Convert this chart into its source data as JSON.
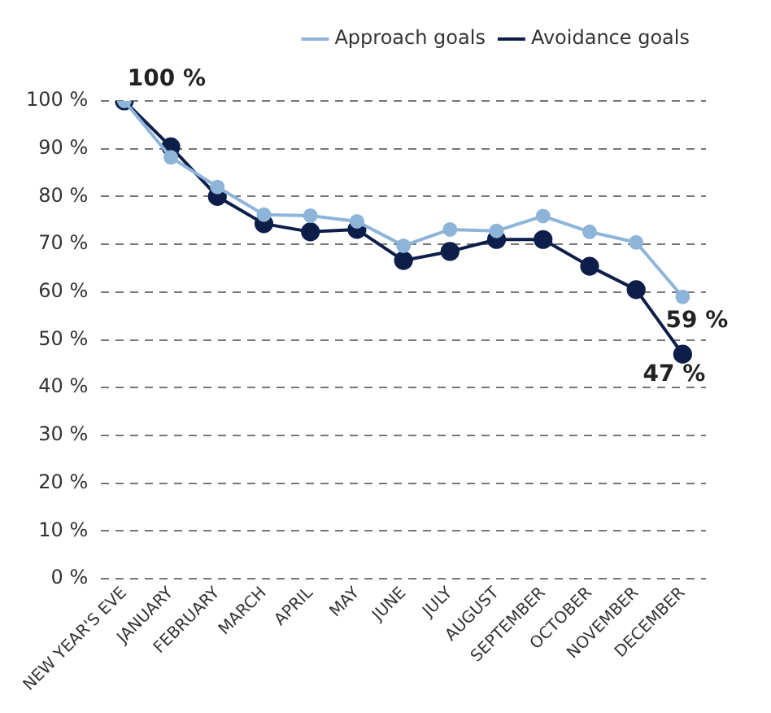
{
  "chart_data": {
    "type": "line",
    "categories": [
      "NEW YEAR'S EVE",
      "JANUARY",
      "FEBRUARY",
      "MARCH",
      "APRIL",
      "MAY",
      "JUNE",
      "JULY",
      "AUGUST",
      "SEPTEMBER",
      "OCTOBER",
      "NOVEMBER",
      "DECEMBER"
    ],
    "series": [
      {
        "name": "Approach goals",
        "color": "#8db4d9",
        "values": [
          100,
          88.2,
          82,
          76.2,
          76,
          74.8,
          69.7,
          73.1,
          72.8,
          75.9,
          72.6,
          70.4,
          59
        ]
      },
      {
        "name": "Avoidance goals",
        "color": "#0d1e4a",
        "values": [
          100,
          90.4,
          80,
          74.3,
          72.6,
          73.1,
          66.6,
          68.5,
          71,
          71,
          65.4,
          60.5,
          47
        ]
      }
    ],
    "ylim": [
      0,
      100
    ],
    "yticks": [
      {
        "value": 0,
        "label": "0 %"
      },
      {
        "value": 10,
        "label": "10 %"
      },
      {
        "value": 20,
        "label": "20 %"
      },
      {
        "value": 30,
        "label": "30 %"
      },
      {
        "value": 40,
        "label": "40 %"
      },
      {
        "value": 50,
        "label": "50 %"
      },
      {
        "value": 60,
        "label": "60 %"
      },
      {
        "value": 70,
        "label": "70 %"
      },
      {
        "value": 80,
        "label": "80 %"
      },
      {
        "value": 90,
        "label": "90 %"
      },
      {
        "value": 100,
        "label": "100 %"
      }
    ],
    "grid": "y",
    "legend": "top",
    "marker": "circle",
    "line_style": "solid",
    "annotations": [
      {
        "text": "100 %",
        "x": "NEW YEAR'S EVE",
        "y": 100
      },
      {
        "text": "59 %",
        "x": "DECEMBER",
        "y": 59
      },
      {
        "text": "47 %",
        "x": "DECEMBER",
        "y": 47
      }
    ]
  }
}
